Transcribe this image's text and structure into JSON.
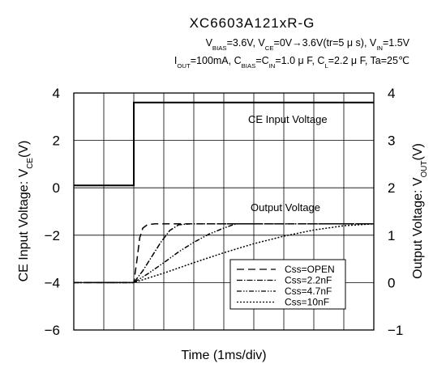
{
  "chart_data": {
    "type": "line",
    "title": "XC6603A121xR-G",
    "conditions": [
      {
        "parts": [
          {
            "t": "V"
          },
          {
            "t": "BIAS",
            "sub": true
          },
          {
            "t": "=3.6V, V"
          },
          {
            "t": "CE",
            "sub": true
          },
          {
            "t": "=0V→3.6V(tr=5 μ s), V"
          },
          {
            "t": "IN",
            "sub": true
          },
          {
            "t": "=1.5V"
          }
        ]
      },
      {
        "parts": [
          {
            "t": "I"
          },
          {
            "t": "OUT",
            "sub": true
          },
          {
            "t": "=100mA, C"
          },
          {
            "t": "BIAS",
            "sub": true
          },
          {
            "t": "=C"
          },
          {
            "t": "IN",
            "sub": true
          },
          {
            "t": "=1.0 μ F, C"
          },
          {
            "t": "L",
            "sub": true
          },
          {
            "t": "=2.2 μ F, Ta=25℃"
          }
        ]
      }
    ],
    "xlabel": "Time (1ms/div)",
    "ylabel_left": {
      "parts": [
        {
          "t": "CE Input Voltage: V"
        },
        {
          "t": "CE",
          "sub": true
        },
        {
          "t": "(V)"
        }
      ]
    },
    "ylabel_right": {
      "parts": [
        {
          "t": "Output Voltage: V"
        },
        {
          "t": "OUT",
          "sub": true
        },
        {
          "t": "(V)"
        }
      ]
    },
    "x_range": [
      0,
      10
    ],
    "y_left_range": [
      -6,
      4
    ],
    "y_left_ticks": [
      4,
      2,
      0,
      -2,
      -4,
      -6
    ],
    "y_right_range": [
      -1,
      4
    ],
    "y_right_ticks": [
      4,
      3,
      2,
      1,
      0,
      -1
    ],
    "grid": true,
    "annotations": {
      "ce_label": "CE Input Voltage",
      "out_label": "Output Voltage"
    },
    "ce_series": {
      "name": "CE Input Voltage",
      "axis": "left",
      "x": [
        0,
        2,
        2,
        10
      ],
      "y": [
        0.1,
        0.1,
        3.6,
        3.6
      ]
    },
    "series": [
      {
        "name": "Css=OPEN",
        "axis": "right",
        "dash": "9,5",
        "x": [
          0,
          2,
          2.1,
          2.2,
          2.3,
          2.45,
          2.7,
          10
        ],
        "y": [
          0,
          0,
          0.45,
          0.95,
          1.15,
          1.22,
          1.24,
          1.24
        ]
      },
      {
        "name": "Css=2.2nF",
        "axis": "right",
        "dash": "7,2,1.5,2",
        "x": [
          0,
          2,
          2.3,
          2.6,
          2.9,
          3.2,
          3.5,
          3.9,
          10
        ],
        "y": [
          0,
          0,
          0.25,
          0.55,
          0.85,
          1.1,
          1.22,
          1.24,
          1.24
        ]
      },
      {
        "name": "Css=4.7nF",
        "axis": "right",
        "dash": "6,2,1.5,2,1.5,2",
        "x": [
          0,
          2,
          2.5,
          3.0,
          3.5,
          4.0,
          4.5,
          5.0,
          5.4,
          10
        ],
        "y": [
          0,
          0,
          0.2,
          0.42,
          0.65,
          0.85,
          1.02,
          1.15,
          1.24,
          1.24
        ]
      },
      {
        "name": "Css=10nF",
        "axis": "right",
        "dash": "2,2",
        "x": [
          0,
          2,
          3,
          4,
          5,
          6,
          7,
          8,
          9,
          10
        ],
        "y": [
          0,
          0,
          0.2,
          0.42,
          0.63,
          0.82,
          0.98,
          1.11,
          1.2,
          1.24
        ]
      }
    ]
  }
}
